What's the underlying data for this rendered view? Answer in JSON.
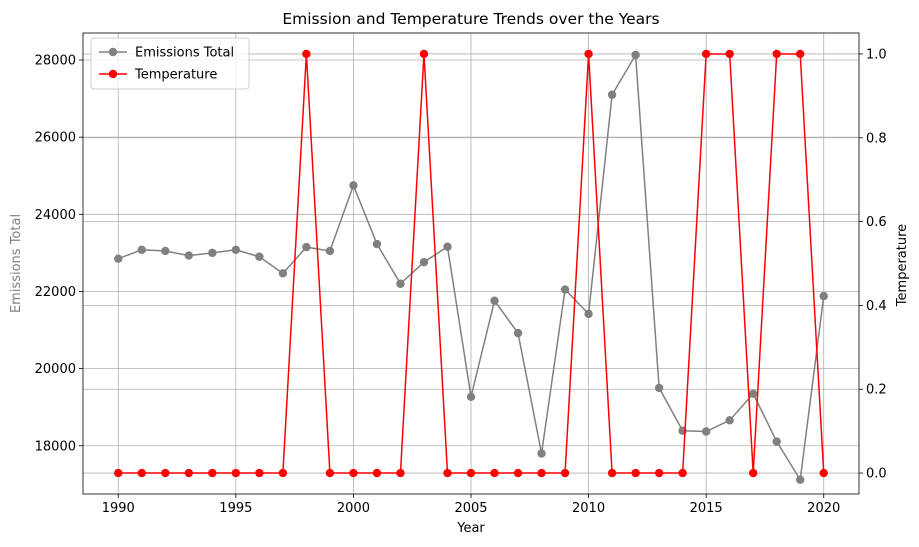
{
  "chart_data": {
    "type": "line",
    "title": "Emission and Temperature Trends over the Years",
    "xlabel": "Year",
    "ylabel_left": "Emissions Total",
    "ylabel_right": "Temperature",
    "x": [
      1990,
      1991,
      1992,
      1993,
      1994,
      1995,
      1996,
      1997,
      1998,
      1999,
      2000,
      2001,
      2002,
      2003,
      2004,
      2005,
      2006,
      2007,
      2008,
      2009,
      2010,
      2011,
      2012,
      2013,
      2014,
      2015,
      2016,
      2017,
      2018,
      2019,
      2020
    ],
    "x_ticks": [
      "1990",
      "1995",
      "2000",
      "2005",
      "2010",
      "2015",
      "2020"
    ],
    "y_left_ticks": [
      "18000",
      "20000",
      "22000",
      "24000",
      "26000",
      "28000"
    ],
    "y_right_ticks": [
      "0.0",
      "0.2",
      "0.4",
      "0.6",
      "0.8",
      "1.0"
    ],
    "xlim": [
      1988.5,
      2021.5
    ],
    "ylim_left": [
      16750,
      28700
    ],
    "ylim_right": [
      -0.05,
      1.05
    ],
    "grid": true,
    "legend_position": "top-left",
    "series": [
      {
        "name": "Emissions Total",
        "axis": "left",
        "color": "#808080",
        "marker": "circle",
        "values": [
          22850,
          23080,
          23050,
          22930,
          23000,
          23080,
          22900,
          22470,
          23150,
          23050,
          24750,
          23230,
          22200,
          22760,
          23160,
          19270,
          21760,
          20920,
          17800,
          22050,
          21420,
          27100,
          28130,
          19500,
          18390,
          18370,
          18660,
          19350,
          18110,
          17120,
          21880
        ]
      },
      {
        "name": "Temperature",
        "axis": "right",
        "color": "#ff0000",
        "marker": "circle",
        "values": [
          0,
          0,
          0,
          0,
          0,
          0,
          0,
          0,
          1,
          0,
          0,
          0,
          0,
          1,
          0,
          0,
          0,
          0,
          0,
          0,
          1,
          0,
          0,
          0,
          0,
          1,
          1,
          0,
          1,
          1,
          0
        ]
      }
    ]
  }
}
